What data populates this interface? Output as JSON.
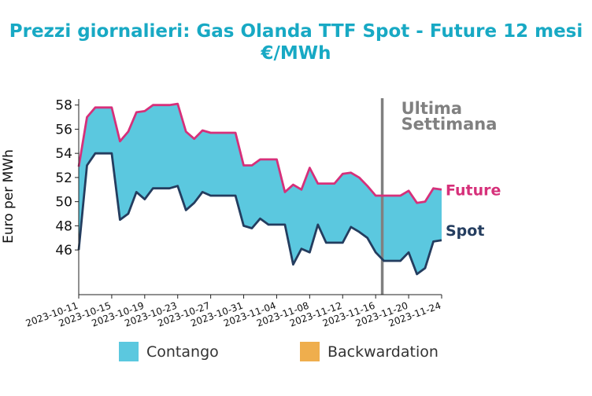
{
  "chart_data": {
    "type": "area",
    "title": "Prezzi giornalieri: Gas Olanda TTF Spot - Future 12 mesi",
    "subtitle": "€/MWh",
    "ylabel": "Euro per MWh",
    "xlabel": "",
    "ylim": [
      42.3,
      58.5
    ],
    "yticks": [
      46,
      48,
      50,
      52,
      54,
      56,
      58
    ],
    "xrange": [
      "2023-10-11",
      "2023-11-24"
    ],
    "xticks": [
      "2023-10-11",
      "2023-10-15",
      "2023-10-19",
      "2023-10-23",
      "2023-10-27",
      "2023-10-31",
      "2023-11-04",
      "2023-11-08",
      "2023-11-12",
      "2023-11-16",
      "2023-11-20",
      "2023-11-24"
    ],
    "grid": false,
    "annotation": {
      "date": "2023-11-16.8",
      "label_line1": "Ultima",
      "label_line2": "Settimana",
      "color": "#808080"
    },
    "legend": [
      {
        "name": "Contango",
        "color": "#5bc8df"
      },
      {
        "name": "Backwardation",
        "color": "#efae4d"
      }
    ],
    "series": [
      {
        "name": "Future",
        "color": "#d6307a",
        "x": [
          "2023-10-11",
          "2023-10-12",
          "2023-10-13",
          "2023-10-14",
          "2023-10-15",
          "2023-10-16",
          "2023-10-17",
          "2023-10-18",
          "2023-10-19",
          "2023-10-20",
          "2023-10-21",
          "2023-10-22",
          "2023-10-23",
          "2023-10-24",
          "2023-10-25",
          "2023-10-26",
          "2023-10-27",
          "2023-10-28",
          "2023-10-29",
          "2023-10-30",
          "2023-10-31",
          "2023-11-01",
          "2023-11-02",
          "2023-11-03",
          "2023-11-04",
          "2023-11-05",
          "2023-11-06",
          "2023-11-07",
          "2023-11-08",
          "2023-11-09",
          "2023-11-10",
          "2023-11-11",
          "2023-11-12",
          "2023-11-13",
          "2023-11-14",
          "2023-11-15",
          "2023-11-16",
          "2023-11-17",
          "2023-11-18",
          "2023-11-19",
          "2023-11-20",
          "2023-11-21",
          "2023-11-22",
          "2023-11-23",
          "2023-11-24"
        ],
        "values": [
          52.9,
          57.0,
          57.8,
          57.8,
          57.8,
          55.0,
          55.8,
          57.4,
          57.5,
          58.0,
          58.0,
          58.0,
          58.1,
          55.8,
          55.2,
          55.9,
          55.7,
          55.7,
          55.7,
          55.7,
          53.0,
          53.0,
          53.5,
          53.5,
          53.5,
          50.8,
          51.4,
          51.0,
          52.8,
          51.5,
          51.5,
          51.5,
          52.3,
          52.4,
          52.0,
          51.3,
          50.5,
          50.5,
          50.5,
          50.5,
          50.9,
          49.9,
          50.0,
          51.1,
          51.0
        ]
      },
      {
        "name": "Spot",
        "color": "#243d5f",
        "x": [
          "2023-10-11",
          "2023-10-12",
          "2023-10-13",
          "2023-10-14",
          "2023-10-15",
          "2023-10-16",
          "2023-10-17",
          "2023-10-18",
          "2023-10-19",
          "2023-10-20",
          "2023-10-21",
          "2023-10-22",
          "2023-10-23",
          "2023-10-24",
          "2023-10-25",
          "2023-10-26",
          "2023-10-27",
          "2023-10-28",
          "2023-10-29",
          "2023-10-30",
          "2023-10-31",
          "2023-11-01",
          "2023-11-02",
          "2023-11-03",
          "2023-11-04",
          "2023-11-05",
          "2023-11-06",
          "2023-11-07",
          "2023-11-08",
          "2023-11-09",
          "2023-11-10",
          "2023-11-11",
          "2023-11-12",
          "2023-11-13",
          "2023-11-14",
          "2023-11-15",
          "2023-11-16",
          "2023-11-17",
          "2023-11-18",
          "2023-11-19",
          "2023-11-20",
          "2023-11-21",
          "2023-11-22",
          "2023-11-23",
          "2023-11-24"
        ],
        "values": [
          46.0,
          53.0,
          54.0,
          54.0,
          54.0,
          48.5,
          49.0,
          50.8,
          50.2,
          51.1,
          51.1,
          51.1,
          51.3,
          49.3,
          49.9,
          50.8,
          50.5,
          50.5,
          50.5,
          50.5,
          48.0,
          47.8,
          48.6,
          48.1,
          48.1,
          48.1,
          44.8,
          46.1,
          45.8,
          48.1,
          46.6,
          46.6,
          46.6,
          47.9,
          47.5,
          47.0,
          45.8,
          45.1,
          45.1,
          45.1,
          45.8,
          44.0,
          44.5,
          46.7,
          46.8
        ]
      }
    ]
  }
}
